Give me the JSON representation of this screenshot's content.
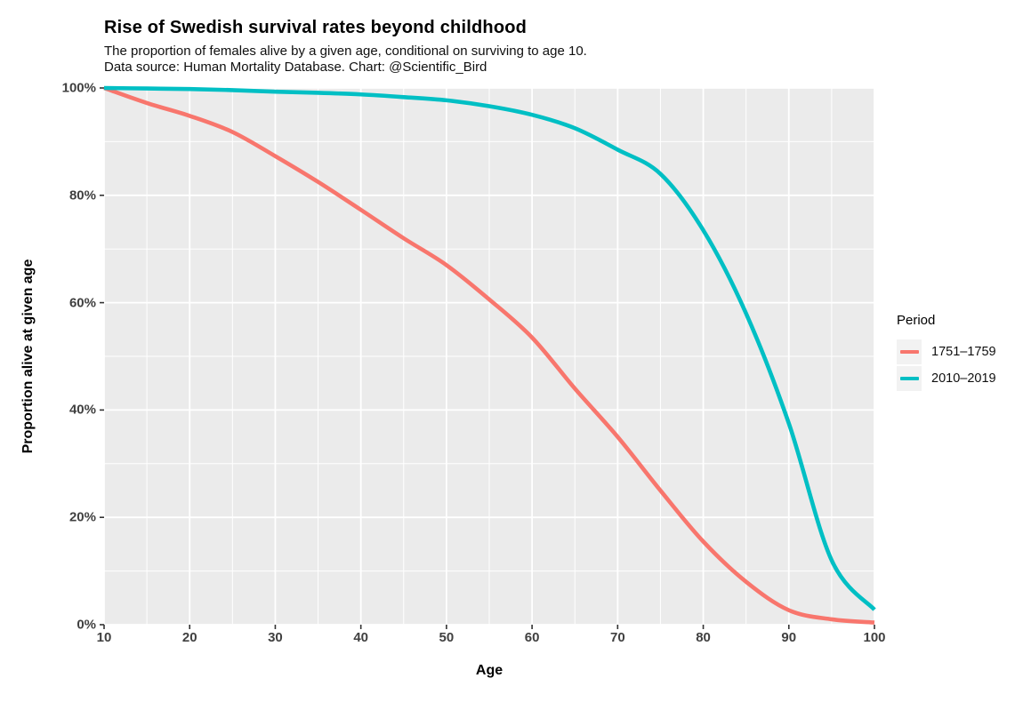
{
  "chart_data": {
    "type": "line",
    "title": "Rise of Swedish survival rates beyond childhood",
    "subtitle_line1": "The proportion of females alive by a given age, conditional on surviving to age 10.",
    "subtitle_line2": "Data source: Human Mortality Database. Chart: @Scientific_Bird",
    "xlabel": "Age",
    "ylabel": "Proportion alive at given age",
    "xlim": [
      10,
      100
    ],
    "ylim": [
      0,
      100
    ],
    "x_ticks": [
      10,
      20,
      30,
      40,
      50,
      60,
      70,
      80,
      90,
      100
    ],
    "x_minor_ticks": [
      15,
      25,
      35,
      45,
      55,
      65,
      75,
      85,
      95
    ],
    "y_ticks": [
      0,
      20,
      40,
      60,
      80,
      100
    ],
    "y_tick_labels": [
      "0%",
      "20%",
      "40%",
      "60%",
      "80%",
      "100%"
    ],
    "y_minor_ticks": [
      10,
      30,
      50,
      70,
      90
    ],
    "grid": true,
    "legend_position": "right",
    "legend_title": "Period",
    "panel_background": "#EBEBEB",
    "grid_color": "#FFFFFF",
    "tick_mark_color": "#333333",
    "legend_key_background": "#F2F2F2",
    "x": [
      10,
      15,
      20,
      25,
      30,
      35,
      40,
      45,
      50,
      55,
      60,
      65,
      70,
      75,
      80,
      85,
      90,
      95,
      100
    ],
    "series": [
      {
        "name": "1751–1759",
        "color": "#F8766D",
        "values": [
          100,
          97.2,
          94.8,
          91.8,
          87.3,
          82.5,
          77.3,
          72,
          67,
          60.6,
          53.5,
          44,
          35,
          25,
          15.5,
          8,
          2.7,
          1,
          0.4
        ]
      },
      {
        "name": "2010–2019",
        "color": "#00BFC4",
        "values": [
          100,
          99.9,
          99.8,
          99.6,
          99.3,
          99.1,
          98.8,
          98.3,
          97.7,
          96.6,
          95,
          92.5,
          88.5,
          84,
          73.5,
          58,
          37.5,
          12,
          2.8
        ]
      }
    ]
  }
}
